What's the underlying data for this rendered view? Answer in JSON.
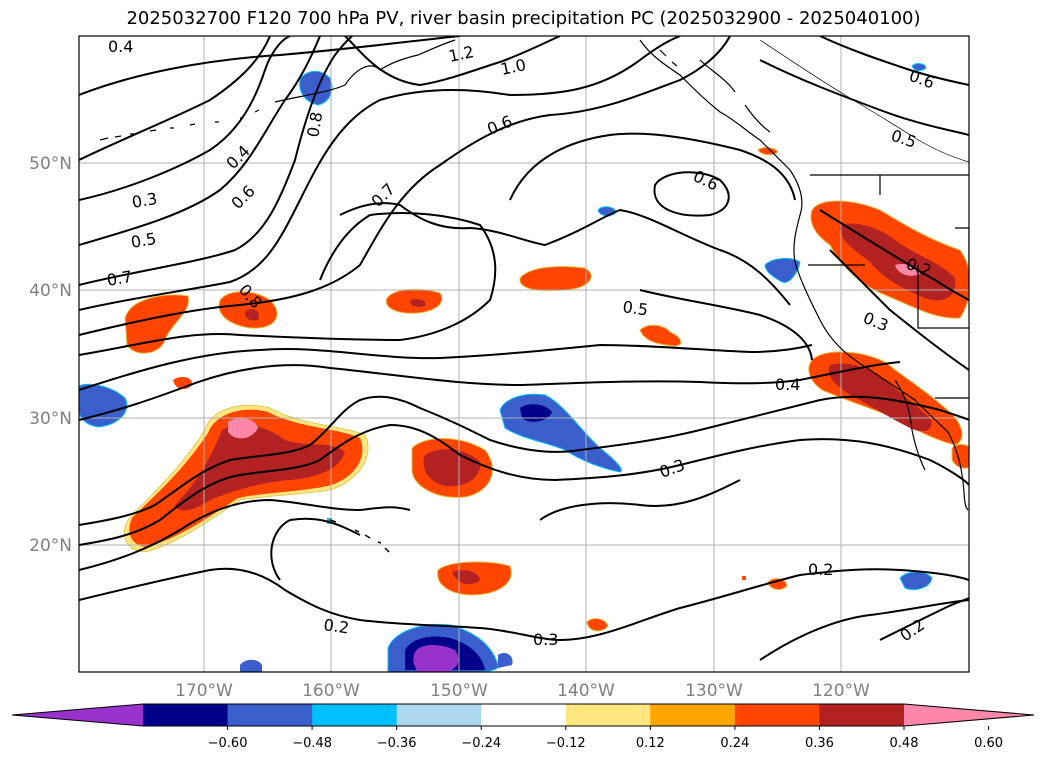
{
  "title": "2025032700 F120 700 hPa PV, river basin precipitation PC (2025032900 - 2025040100)",
  "map": {
    "lat_labels": [
      "50°N",
      "40°N",
      "30°N",
      "20°N"
    ],
    "lon_labels": [
      "170°W",
      "160°W",
      "150°W",
      "140°W",
      "130°W",
      "120°W"
    ],
    "contour_labels": [
      "0.4",
      "1.2",
      "1.0",
      "0.8",
      "0.6",
      "0.6",
      "0.5",
      "0.4",
      "0.6",
      "0.3",
      "0.5",
      "0.7",
      "0.8",
      "0.7",
      "0.6",
      "0.5",
      "0.2",
      "0.3",
      "0.4",
      "0.3",
      "0.2",
      "0.3",
      "0.2",
      "0.2"
    ],
    "colors": {
      "contour": "#000000",
      "coast": "#000000",
      "grid": "#b0b0b0"
    }
  },
  "colorbar": {
    "ticks": [
      "−0.60",
      "−0.48",
      "−0.36",
      "−0.24",
      "−0.12",
      "0.12",
      "0.24",
      "0.36",
      "0.48",
      "0.60"
    ],
    "colors": [
      "#9932cc",
      "#00008b",
      "#3a5fcd",
      "#00bfff",
      "#add8f0",
      "#ffffff",
      "#ffe680",
      "#ffa500",
      "#ff4500",
      "#b22222",
      "#ff88aa"
    ]
  }
}
